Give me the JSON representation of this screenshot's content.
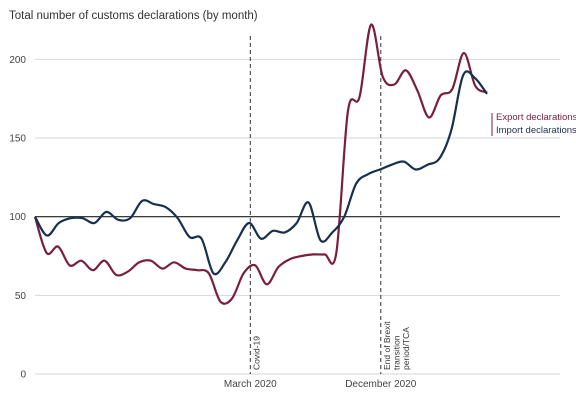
{
  "chart_data": {
    "type": "line",
    "title": "Total number of customs declarations (by month)",
    "xlabel": "",
    "ylabel": "",
    "ylim": [
      0,
      225
    ],
    "yticks": [
      0,
      50,
      100,
      150,
      200
    ],
    "grid": true,
    "baseline": 100,
    "x_count": 42,
    "x_tick_labels": [
      {
        "x": 16.5,
        "label": "March 2020"
      },
      {
        "x": 26.5,
        "label": "December 2020"
      }
    ],
    "events": [
      {
        "x": 16.5,
        "label": "Covid-19"
      },
      {
        "x": 26.5,
        "label": "End of Brexit transition period/TCA"
      }
    ],
    "legend_position": "right",
    "series": [
      {
        "name": "Export declarations",
        "color": "#7a1f3a",
        "values": [
          100,
          77,
          81,
          69,
          72,
          66,
          72,
          63,
          65,
          71,
          72,
          67,
          71,
          67,
          66,
          64,
          46,
          48,
          64,
          69,
          57,
          68,
          73,
          75,
          76,
          76,
          77,
          167,
          176,
          222,
          189,
          184,
          193,
          180,
          163,
          177,
          181,
          204,
          183,
          179
        ]
      },
      {
        "name": "Import declarations",
        "color": "#17304f",
        "values": [
          100,
          88,
          96,
          99,
          99,
          96,
          103,
          98,
          99,
          110,
          108,
          106,
          99,
          87,
          86,
          64,
          71,
          85,
          96,
          86,
          91,
          90,
          96,
          109,
          85,
          90,
          100,
          121,
          127,
          130,
          133,
          135,
          130,
          133,
          137,
          155,
          190,
          188,
          178
        ]
      }
    ]
  }
}
